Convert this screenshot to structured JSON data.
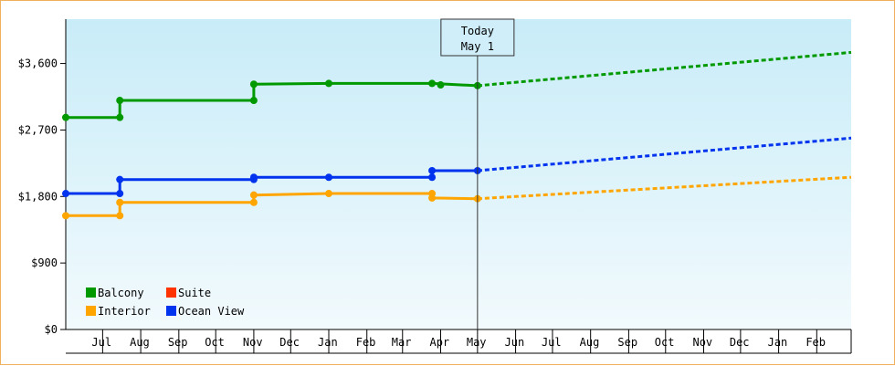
{
  "chart_data": {
    "type": "line",
    "title": "",
    "xlabel": "",
    "ylabel": "",
    "y_ticks": [
      "$0",
      "$900",
      "$1,800",
      "$2,700",
      "$3,600"
    ],
    "y_tick_values": [
      0,
      900,
      1800,
      2700,
      3600
    ],
    "ylim": [
      0,
      4200
    ],
    "month_labels": [
      "Jul",
      "Aug",
      "Sep",
      "Oct",
      "Nov",
      "Dec",
      "Jan",
      "Feb",
      "Mar",
      "Apr",
      "May",
      "Jun",
      "Jul",
      "Aug",
      "Sep",
      "Oct",
      "Nov",
      "Dec",
      "Jan",
      "Feb"
    ],
    "xlim": [
      "2023-06-01",
      "2025-03-01"
    ],
    "today": {
      "line1": "Today",
      "line2": "May 1",
      "date": "2024-05-01"
    },
    "grid": false,
    "legend_position": "bottom-left",
    "series": [
      {
        "name": "Balcony",
        "color": "#009900",
        "step_points": [
          [
            "2023-06-01",
            2870
          ],
          [
            "2023-07-15",
            2870
          ],
          [
            "2023-07-15",
            3100
          ],
          [
            "2023-11-01",
            3100
          ],
          [
            "2023-11-01",
            3320
          ],
          [
            "2024-01-01",
            3330
          ],
          [
            "2024-03-25",
            3330
          ],
          [
            "2024-05-01",
            3300
          ]
        ],
        "markers": [
          [
            "2023-06-01",
            2870
          ],
          [
            "2023-07-15",
            2870
          ],
          [
            "2023-07-15",
            3100
          ],
          [
            "2023-11-01",
            3100
          ],
          [
            "2023-11-01",
            3320
          ],
          [
            "2024-01-01",
            3330
          ],
          [
            "2024-03-25",
            3330
          ],
          [
            "2024-04-01",
            3310
          ],
          [
            "2024-05-01",
            3300
          ]
        ],
        "forecast": [
          [
            "2024-05-01",
            3300
          ],
          [
            "2025-03-01",
            3750
          ]
        ]
      },
      {
        "name": "Suite",
        "color": "#ff3300",
        "step_points": [],
        "markers": [],
        "forecast": []
      },
      {
        "name": "Interior",
        "color": "#ffa500",
        "step_points": [
          [
            "2023-06-01",
            1540
          ],
          [
            "2023-07-15",
            1540
          ],
          [
            "2023-07-15",
            1720
          ],
          [
            "2023-11-01",
            1720
          ],
          [
            "2023-11-01",
            1820
          ],
          [
            "2024-01-01",
            1840
          ],
          [
            "2024-03-25",
            1840
          ],
          [
            "2024-03-25",
            1780
          ],
          [
            "2024-05-01",
            1770
          ]
        ],
        "markers": [
          [
            "2023-06-01",
            1540
          ],
          [
            "2023-07-15",
            1540
          ],
          [
            "2023-07-15",
            1720
          ],
          [
            "2023-11-01",
            1720
          ],
          [
            "2023-11-01",
            1820
          ],
          [
            "2024-01-01",
            1840
          ],
          [
            "2024-03-25",
            1840
          ],
          [
            "2024-03-25",
            1780
          ],
          [
            "2024-05-01",
            1770
          ]
        ],
        "forecast": [
          [
            "2024-05-01",
            1770
          ],
          [
            "2025-03-01",
            2060
          ]
        ]
      },
      {
        "name": "Ocean View",
        "color": "#0033ee",
        "step_points": [
          [
            "2023-06-01",
            1840
          ],
          [
            "2023-07-15",
            1840
          ],
          [
            "2023-07-15",
            2030
          ],
          [
            "2023-11-01",
            2030
          ],
          [
            "2023-11-01",
            2060
          ],
          [
            "2024-01-01",
            2060
          ],
          [
            "2024-03-25",
            2060
          ],
          [
            "2024-03-25",
            2150
          ],
          [
            "2024-05-01",
            2150
          ]
        ],
        "markers": [
          [
            "2023-06-01",
            1840
          ],
          [
            "2023-07-15",
            1840
          ],
          [
            "2023-07-15",
            2030
          ],
          [
            "2023-11-01",
            2030
          ],
          [
            "2023-11-01",
            2060
          ],
          [
            "2024-01-01",
            2060
          ],
          [
            "2024-03-25",
            2060
          ],
          [
            "2024-03-25",
            2150
          ],
          [
            "2024-05-01",
            2150
          ]
        ],
        "forecast": [
          [
            "2024-05-01",
            2150
          ],
          [
            "2025-03-01",
            2590
          ]
        ]
      }
    ]
  }
}
